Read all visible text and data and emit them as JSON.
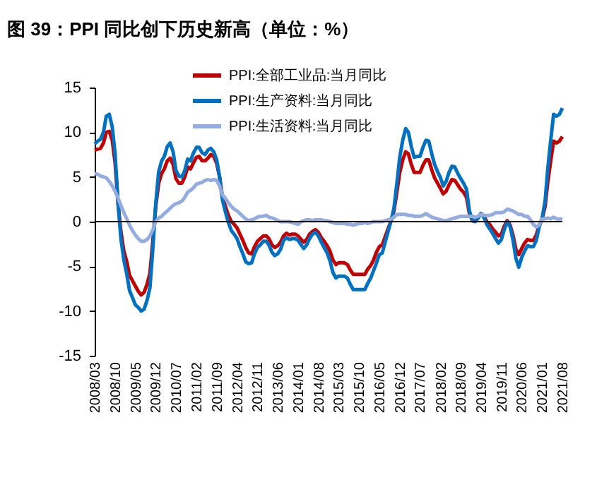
{
  "chart_data": {
    "type": "line",
    "title": "图 39：PPI 同比创下历史新高（单位：%）",
    "x": [
      "2008-03",
      "2008-04",
      "2008-05",
      "2008-06",
      "2008-07",
      "2008-08",
      "2008-09",
      "2008-10",
      "2008-11",
      "2008-12",
      "2009-01",
      "2009-02",
      "2009-03",
      "2009-04",
      "2009-05",
      "2009-06",
      "2009-07",
      "2009-08",
      "2009-09",
      "2009-10",
      "2009-11",
      "2009-12",
      "2010-01",
      "2010-02",
      "2010-03",
      "2010-04",
      "2010-05",
      "2010-06",
      "2010-07",
      "2010-08",
      "2010-09",
      "2010-10",
      "2010-11",
      "2010-12",
      "2011-01",
      "2011-02",
      "2011-03",
      "2011-04",
      "2011-05",
      "2011-06",
      "2011-07",
      "2011-08",
      "2011-09",
      "2011-10",
      "2011-11",
      "2011-12",
      "2012-01",
      "2012-02",
      "2012-03",
      "2012-04",
      "2012-05",
      "2012-06",
      "2012-07",
      "2012-08",
      "2012-09",
      "2012-10",
      "2012-11",
      "2012-12",
      "2013-01",
      "2013-02",
      "2013-03",
      "2013-04",
      "2013-05",
      "2013-06",
      "2013-07",
      "2013-08",
      "2013-09",
      "2013-10",
      "2013-11",
      "2013-12",
      "2014-01",
      "2014-02",
      "2014-03",
      "2014-04",
      "2014-05",
      "2014-06",
      "2014-07",
      "2014-08",
      "2014-09",
      "2014-10",
      "2014-11",
      "2014-12",
      "2015-01",
      "2015-02",
      "2015-03",
      "2015-04",
      "2015-05",
      "2015-06",
      "2015-07",
      "2015-08",
      "2015-09",
      "2015-10",
      "2015-11",
      "2015-12",
      "2016-01",
      "2016-02",
      "2016-03",
      "2016-04",
      "2016-05",
      "2016-06",
      "2016-07",
      "2016-08",
      "2016-09",
      "2016-10",
      "2016-11",
      "2016-12",
      "2017-01",
      "2017-02",
      "2017-03",
      "2017-04",
      "2017-05",
      "2017-06",
      "2017-07",
      "2017-08",
      "2017-09",
      "2017-10",
      "2017-11",
      "2017-12",
      "2018-01",
      "2018-02",
      "2018-03",
      "2018-04",
      "2018-05",
      "2018-06",
      "2018-07",
      "2018-08",
      "2018-09",
      "2018-10",
      "2018-11",
      "2018-12",
      "2019-01",
      "2019-02",
      "2019-03",
      "2019-04",
      "2019-05",
      "2019-06",
      "2019-07",
      "2019-08",
      "2019-09",
      "2019-10",
      "2019-11",
      "2019-12",
      "2020-01",
      "2020-02",
      "2020-03",
      "2020-04",
      "2020-05",
      "2020-06",
      "2020-07",
      "2020-08",
      "2020-09",
      "2020-10",
      "2020-11",
      "2020-12",
      "2021-01",
      "2021-02",
      "2021-03",
      "2021-04",
      "2021-05",
      "2021-06",
      "2021-07",
      "2021-08"
    ],
    "series": [
      {
        "name": "PPI:全部工业品:当月同比",
        "color": "#c00000",
        "values": [
          8.0,
          8.1,
          8.2,
          8.8,
          10.0,
          10.1,
          9.1,
          6.6,
          2.0,
          -1.1,
          -3.3,
          -4.5,
          -6.0,
          -6.6,
          -7.2,
          -7.8,
          -8.2,
          -7.9,
          -7.0,
          -5.8,
          -2.1,
          1.7,
          4.3,
          5.4,
          5.9,
          6.8,
          7.1,
          6.4,
          4.8,
          4.3,
          4.3,
          5.0,
          6.1,
          5.9,
          6.6,
          7.2,
          7.3,
          6.8,
          6.8,
          7.1,
          7.5,
          7.3,
          6.5,
          5.0,
          2.7,
          1.7,
          0.7,
          0.0,
          -0.3,
          -0.7,
          -1.4,
          -2.1,
          -2.9,
          -3.5,
          -3.6,
          -2.8,
          -2.2,
          -1.9,
          -1.6,
          -1.6,
          -1.9,
          -2.6,
          -2.9,
          -2.7,
          -2.3,
          -1.6,
          -1.3,
          -1.5,
          -1.4,
          -1.4,
          -1.6,
          -2.0,
          -2.3,
          -2.0,
          -1.4,
          -1.1,
          -0.9,
          -1.2,
          -1.8,
          -2.2,
          -2.7,
          -3.3,
          -4.3,
          -4.8,
          -4.6,
          -4.6,
          -4.6,
          -4.8,
          -5.4,
          -5.9,
          -5.9,
          -5.9,
          -5.9,
          -5.9,
          -5.3,
          -4.9,
          -4.3,
          -3.4,
          -2.8,
          -2.6,
          -1.7,
          -0.8,
          0.1,
          1.2,
          3.3,
          5.5,
          6.9,
          7.8,
          7.6,
          6.4,
          5.5,
          5.5,
          5.5,
          6.3,
          6.9,
          6.9,
          5.8,
          4.9,
          4.3,
          3.7,
          3.1,
          3.4,
          4.1,
          4.7,
          4.6,
          4.1,
          3.6,
          3.3,
          2.7,
          0.9,
          0.1,
          0.1,
          0.4,
          0.9,
          0.6,
          0.0,
          -0.3,
          -0.8,
          -1.2,
          -1.6,
          -1.4,
          -0.5,
          0.1,
          -0.4,
          -1.5,
          -3.1,
          -3.7,
          -3.0,
          -2.4,
          -2.0,
          -2.1,
          -2.1,
          -1.5,
          -0.4,
          0.3,
          1.7,
          4.4,
          6.8,
          9.0,
          8.8,
          9.0,
          9.5
        ]
      },
      {
        "name": "PPI:生产资料:当月同比",
        "color": "#0070c0",
        "values": [
          8.7,
          9.0,
          9.2,
          10.0,
          11.8,
          12.0,
          10.6,
          7.6,
          2.1,
          -1.9,
          -4.3,
          -5.9,
          -7.7,
          -8.5,
          -9.3,
          -9.6,
          -10.0,
          -9.8,
          -8.8,
          -7.4,
          -2.9,
          2.0,
          5.6,
          6.8,
          7.3,
          8.4,
          8.8,
          7.8,
          5.7,
          5.1,
          5.0,
          5.7,
          7.0,
          6.8,
          7.7,
          8.3,
          8.3,
          7.7,
          7.5,
          8.0,
          8.2,
          7.8,
          6.9,
          5.0,
          2.4,
          1.1,
          -0.1,
          -1.0,
          -1.4,
          -1.9,
          -2.8,
          -3.6,
          -4.5,
          -4.7,
          -4.6,
          -3.6,
          -2.9,
          -2.6,
          -2.2,
          -2.2,
          -2.6,
          -3.4,
          -3.8,
          -3.6,
          -3.1,
          -2.1,
          -1.8,
          -2.0,
          -1.9,
          -1.9,
          -2.1,
          -2.6,
          -3.0,
          -2.6,
          -1.9,
          -1.4,
          -1.2,
          -1.6,
          -2.3,
          -2.9,
          -3.5,
          -4.4,
          -5.7,
          -6.3,
          -6.1,
          -6.1,
          -6.1,
          -6.3,
          -7.0,
          -7.6,
          -7.6,
          -7.6,
          -7.6,
          -7.6,
          -6.9,
          -6.3,
          -5.5,
          -4.6,
          -3.7,
          -3.5,
          -2.3,
          -1.1,
          0.1,
          1.5,
          4.3,
          7.2,
          9.1,
          10.4,
          10.0,
          8.4,
          7.2,
          7.3,
          7.3,
          8.3,
          9.1,
          9.0,
          7.6,
          6.4,
          5.6,
          4.9,
          4.0,
          4.5,
          5.5,
          6.2,
          6.1,
          5.4,
          4.8,
          4.3,
          3.6,
          1.2,
          0.1,
          0.0,
          0.4,
          0.9,
          0.5,
          -0.3,
          -0.8,
          -1.3,
          -1.9,
          -2.4,
          -2.0,
          -0.9,
          0.0,
          -0.6,
          -2.0,
          -4.1,
          -5.1,
          -4.0,
          -3.3,
          -2.7,
          -2.8,
          -2.8,
          -2.1,
          -0.6,
          0.4,
          2.3,
          5.9,
          9.1,
          12.0,
          11.8,
          12.0,
          12.7
        ]
      },
      {
        "name": "PPI:生活资料:当月同比",
        "color": "#95acdf",
        "values": [
          5.4,
          5.3,
          5.1,
          5.0,
          4.9,
          4.5,
          4.0,
          3.4,
          2.6,
          1.8,
          1.0,
          0.3,
          -0.4,
          -1.0,
          -1.5,
          -1.9,
          -2.2,
          -2.2,
          -2.0,
          -1.6,
          -0.9,
          0.0,
          0.4,
          0.6,
          0.9,
          1.2,
          1.5,
          1.8,
          2.0,
          2.1,
          2.3,
          2.7,
          3.3,
          3.5,
          3.8,
          4.2,
          4.3,
          4.4,
          4.6,
          4.7,
          4.6,
          4.7,
          4.6,
          4.0,
          3.0,
          2.6,
          2.1,
          1.7,
          1.4,
          1.2,
          0.9,
          0.6,
          0.3,
          0.1,
          0.2,
          0.3,
          0.5,
          0.6,
          0.6,
          0.7,
          0.5,
          0.4,
          0.3,
          0.1,
          0.0,
          0.0,
          0.0,
          0.0,
          -0.1,
          -0.2,
          -0.3,
          0.0,
          0.1,
          0.2,
          0.2,
          0.1,
          0.2,
          0.2,
          0.2,
          0.1,
          0.1,
          0.0,
          -0.1,
          -0.2,
          -0.2,
          -0.2,
          -0.2,
          -0.3,
          -0.3,
          -0.4,
          -0.3,
          -0.2,
          -0.2,
          -0.1,
          -0.2,
          -0.1,
          0.0,
          0.0,
          0.0,
          0.0,
          0.1,
          0.2,
          0.3,
          0.5,
          0.8,
          0.8,
          0.8,
          0.8,
          0.7,
          0.7,
          0.6,
          0.6,
          0.6,
          0.7,
          0.9,
          0.7,
          0.5,
          0.4,
          0.3,
          0.2,
          0.1,
          0.1,
          0.2,
          0.3,
          0.4,
          0.5,
          0.6,
          0.6,
          0.6,
          0.6,
          0.6,
          0.5,
          0.6,
          0.8,
          0.7,
          0.7,
          0.7,
          0.8,
          1.0,
          1.0,
          1.0,
          1.1,
          1.4,
          1.3,
          1.2,
          1.0,
          0.8,
          0.8,
          0.6,
          0.6,
          0.2,
          -0.3,
          -0.6,
          -0.4,
          0.3,
          0.3,
          0.4,
          0.3,
          0.5,
          0.3,
          0.3,
          0.3
        ]
      }
    ],
    "xlim": [
      "2008-03",
      "2021-08"
    ],
    "xticks": [
      {
        "value": "2008-03",
        "label": "2008/03"
      },
      {
        "value": "2008-10",
        "label": "2008/10"
      },
      {
        "value": "2009-05",
        "label": "2009/05"
      },
      {
        "value": "2009-12",
        "label": "2009/12"
      },
      {
        "value": "2010-07",
        "label": "2010/07"
      },
      {
        "value": "2011-02",
        "label": "2011/02"
      },
      {
        "value": "2011-09",
        "label": "2011/09"
      },
      {
        "value": "2012-04",
        "label": "2012/04"
      },
      {
        "value": "2012-11",
        "label": "2012/11"
      },
      {
        "value": "2013-06",
        "label": "2013/06"
      },
      {
        "value": "2014-01",
        "label": "2014/01"
      },
      {
        "value": "2014-08",
        "label": "2014/08"
      },
      {
        "value": "2015-03",
        "label": "2015/03"
      },
      {
        "value": "2015-10",
        "label": "2015/10"
      },
      {
        "value": "2016-05",
        "label": "2016/05"
      },
      {
        "value": "2016-12",
        "label": "2016/12"
      },
      {
        "value": "2017-07",
        "label": "2017/07"
      },
      {
        "value": "2018-02",
        "label": "2018/02"
      },
      {
        "value": "2018-09",
        "label": "2018/09"
      },
      {
        "value": "2019-04",
        "label": "2019/04"
      },
      {
        "value": "2019-11",
        "label": "2019/11"
      },
      {
        "value": "2020-06",
        "label": "2020/06"
      },
      {
        "value": "2021-01",
        "label": "2021/01"
      },
      {
        "value": "2021-08",
        "label": "2021/08"
      }
    ],
    "ylim": [
      -15,
      15
    ],
    "yticks": [
      -15,
      -10,
      -5,
      0,
      5,
      10,
      15
    ],
    "ref_lines": [
      {
        "axis": "y",
        "value": 0,
        "color": "#000000"
      }
    ],
    "legend": "top",
    "grid": false,
    "line_style": "solid",
    "marker": "none"
  }
}
